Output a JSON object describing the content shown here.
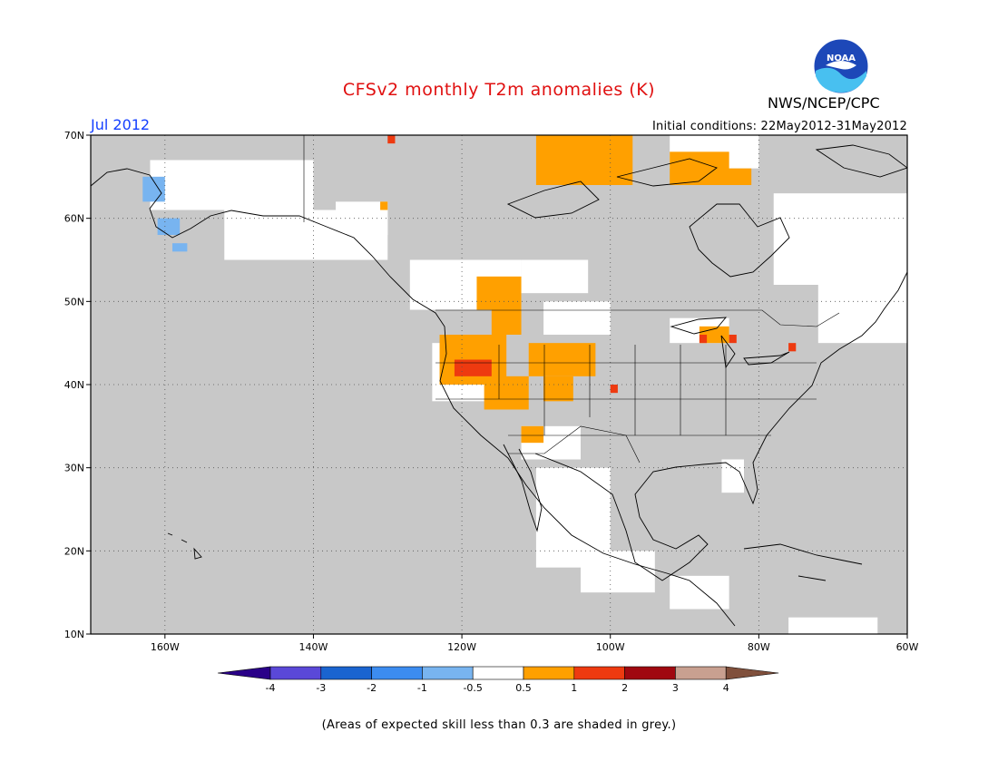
{
  "header": {
    "title": "CFSv2 monthly T2m anomalies (K)",
    "month": "Jul 2012",
    "initial_conditions": "Initial conditions: 22May2012-31May2012",
    "agency": "NWS/NCEP/CPC",
    "logo_text": "NOAA"
  },
  "map": {
    "lat_range": [
      10,
      70
    ],
    "lon_range": [
      -170,
      -60
    ],
    "lat_ticks": [
      {
        "value": 10,
        "label": "10N"
      },
      {
        "value": 20,
        "label": "20N"
      },
      {
        "value": 30,
        "label": "30N"
      },
      {
        "value": 40,
        "label": "40N"
      },
      {
        "value": 50,
        "label": "50N"
      },
      {
        "value": 60,
        "label": "60N"
      },
      {
        "value": 70,
        "label": "70N"
      }
    ],
    "lon_ticks": [
      {
        "value": -160,
        "label": "160W"
      },
      {
        "value": -140,
        "label": "140W"
      },
      {
        "value": -120,
        "label": "120W"
      },
      {
        "value": -100,
        "label": "100W"
      },
      {
        "value": -80,
        "label": "80W"
      },
      {
        "value": -60,
        "label": "60W"
      }
    ],
    "colors": {
      "low_skill": "#c8c8c8",
      "neutral": "#ffffff",
      "pos_0_5_to_1": "#ffa000",
      "pos_1_to_2": "#ee3a10",
      "neg_0_5_to_1": "#78b4f0",
      "coast": "#000000"
    },
    "anomaly_regions": [
      {
        "category": "neutral",
        "lon": [
          -162,
          -140
        ],
        "lat": [
          61,
          67
        ]
      },
      {
        "category": "neutral",
        "lon": [
          -152,
          -130
        ],
        "lat": [
          55,
          61
        ]
      },
      {
        "category": "neutral",
        "lon": [
          -137,
          -130
        ],
        "lat": [
          58,
          62
        ]
      },
      {
        "category": "neutral",
        "lon": [
          -127,
          -112
        ],
        "lat": [
          49,
          55
        ]
      },
      {
        "category": "neutral",
        "lon": [
          -112,
          -103
        ],
        "lat": [
          51,
          55
        ]
      },
      {
        "category": "neutral",
        "lon": [
          -109,
          -100
        ],
        "lat": [
          46,
          50
        ]
      },
      {
        "category": "neutral",
        "lon": [
          -124,
          -115
        ],
        "lat": [
          38,
          45
        ]
      },
      {
        "category": "neutral",
        "lon": [
          -112,
          -104
        ],
        "lat": [
          31,
          35
        ]
      },
      {
        "category": "neutral",
        "lon": [
          -110,
          -100
        ],
        "lat": [
          18,
          30
        ]
      },
      {
        "category": "neutral",
        "lon": [
          -104,
          -94
        ],
        "lat": [
          15,
          20
        ]
      },
      {
        "category": "neutral",
        "lon": [
          -92,
          -84
        ],
        "lat": [
          13,
          17
        ]
      },
      {
        "category": "neutral",
        "lon": [
          -92,
          -84
        ],
        "lat": [
          45,
          48
        ]
      },
      {
        "category": "neutral",
        "lon": [
          -85,
          -82
        ],
        "lat": [
          27,
          31
        ]
      },
      {
        "category": "neutral",
        "lon": [
          -78,
          -60
        ],
        "lat": [
          52,
          63
        ]
      },
      {
        "category": "neutral",
        "lon": [
          -72,
          -60
        ],
        "lat": [
          45,
          52
        ]
      },
      {
        "category": "neutral",
        "lon": [
          -92,
          -80
        ],
        "lat": [
          66,
          70
        ]
      },
      {
        "category": "neutral",
        "lon": [
          -76,
          -64
        ],
        "lat": [
          10,
          12
        ]
      },
      {
        "category": "pos_0_5_to_1",
        "lon": [
          -118,
          -112
        ],
        "lat": [
          49,
          53
        ]
      },
      {
        "category": "pos_0_5_to_1",
        "lon": [
          -116,
          -112
        ],
        "lat": [
          46,
          49
        ]
      },
      {
        "category": "pos_0_5_to_1",
        "lon": [
          -123,
          -114
        ],
        "lat": [
          40,
          46
        ]
      },
      {
        "category": "pos_0_5_to_1",
        "lon": [
          -117,
          -111
        ],
        "lat": [
          37,
          41
        ]
      },
      {
        "category": "pos_0_5_to_1",
        "lon": [
          -111,
          -102
        ],
        "lat": [
          41,
          45
        ]
      },
      {
        "category": "pos_0_5_to_1",
        "lon": [
          -109,
          -105
        ],
        "lat": [
          38,
          41
        ]
      },
      {
        "category": "pos_0_5_to_1",
        "lon": [
          -112,
          -109
        ],
        "lat": [
          33,
          35
        ]
      },
      {
        "category": "pos_0_5_to_1",
        "lon": [
          -110,
          -97
        ],
        "lat": [
          64,
          70
        ]
      },
      {
        "category": "pos_0_5_to_1",
        "lon": [
          -92,
          -84
        ],
        "lat": [
          64,
          68
        ]
      },
      {
        "category": "pos_0_5_to_1",
        "lon": [
          -86,
          -81
        ],
        "lat": [
          64,
          66
        ]
      },
      {
        "category": "pos_0_5_to_1",
        "lon": [
          -88,
          -84
        ],
        "lat": [
          45,
          47
        ]
      },
      {
        "category": "pos_0_5_to_1",
        "lon": [
          -131,
          -130
        ],
        "lat": [
          61,
          62
        ]
      },
      {
        "category": "pos_1_to_2",
        "lon": [
          -121,
          -116
        ],
        "lat": [
          41,
          43
        ]
      },
      {
        "category": "pos_1_to_2",
        "lon": [
          -100,
          -99
        ],
        "lat": [
          39,
          40
        ]
      },
      {
        "category": "pos_1_to_2",
        "lon": [
          -88,
          -87
        ],
        "lat": [
          45,
          46
        ]
      },
      {
        "category": "pos_1_to_2",
        "lon": [
          -84,
          -83
        ],
        "lat": [
          45,
          46
        ]
      },
      {
        "category": "pos_1_to_2",
        "lon": [
          -76,
          -75
        ],
        "lat": [
          44,
          45
        ]
      },
      {
        "category": "pos_1_to_2",
        "lon": [
          -130,
          -129
        ],
        "lat": [
          69,
          70
        ]
      },
      {
        "category": "neg_0_5_to_1",
        "lon": [
          -163,
          -160
        ],
        "lat": [
          62,
          65
        ]
      },
      {
        "category": "neg_0_5_to_1",
        "lon": [
          -161,
          -158
        ],
        "lat": [
          58,
          60
        ]
      },
      {
        "category": "neg_0_5_to_1",
        "lon": [
          -159,
          -157
        ],
        "lat": [
          56,
          57
        ]
      }
    ]
  },
  "colorbar": {
    "boundaries": [
      "-4",
      "-3",
      "-2",
      "-1",
      "-0.5",
      "0.5",
      "1",
      "2",
      "3",
      "4"
    ],
    "colors": [
      "#2a0088",
      "#5a48d8",
      "#1a64d0",
      "#3c8cf0",
      "#78b4f0",
      "#ffffff",
      "#ffa000",
      "#ee3a10",
      "#a00810",
      "#c8a090",
      "#80503c"
    ]
  },
  "footnote": "(Areas of expected skill less than 0.3 are shaded in grey.)"
}
